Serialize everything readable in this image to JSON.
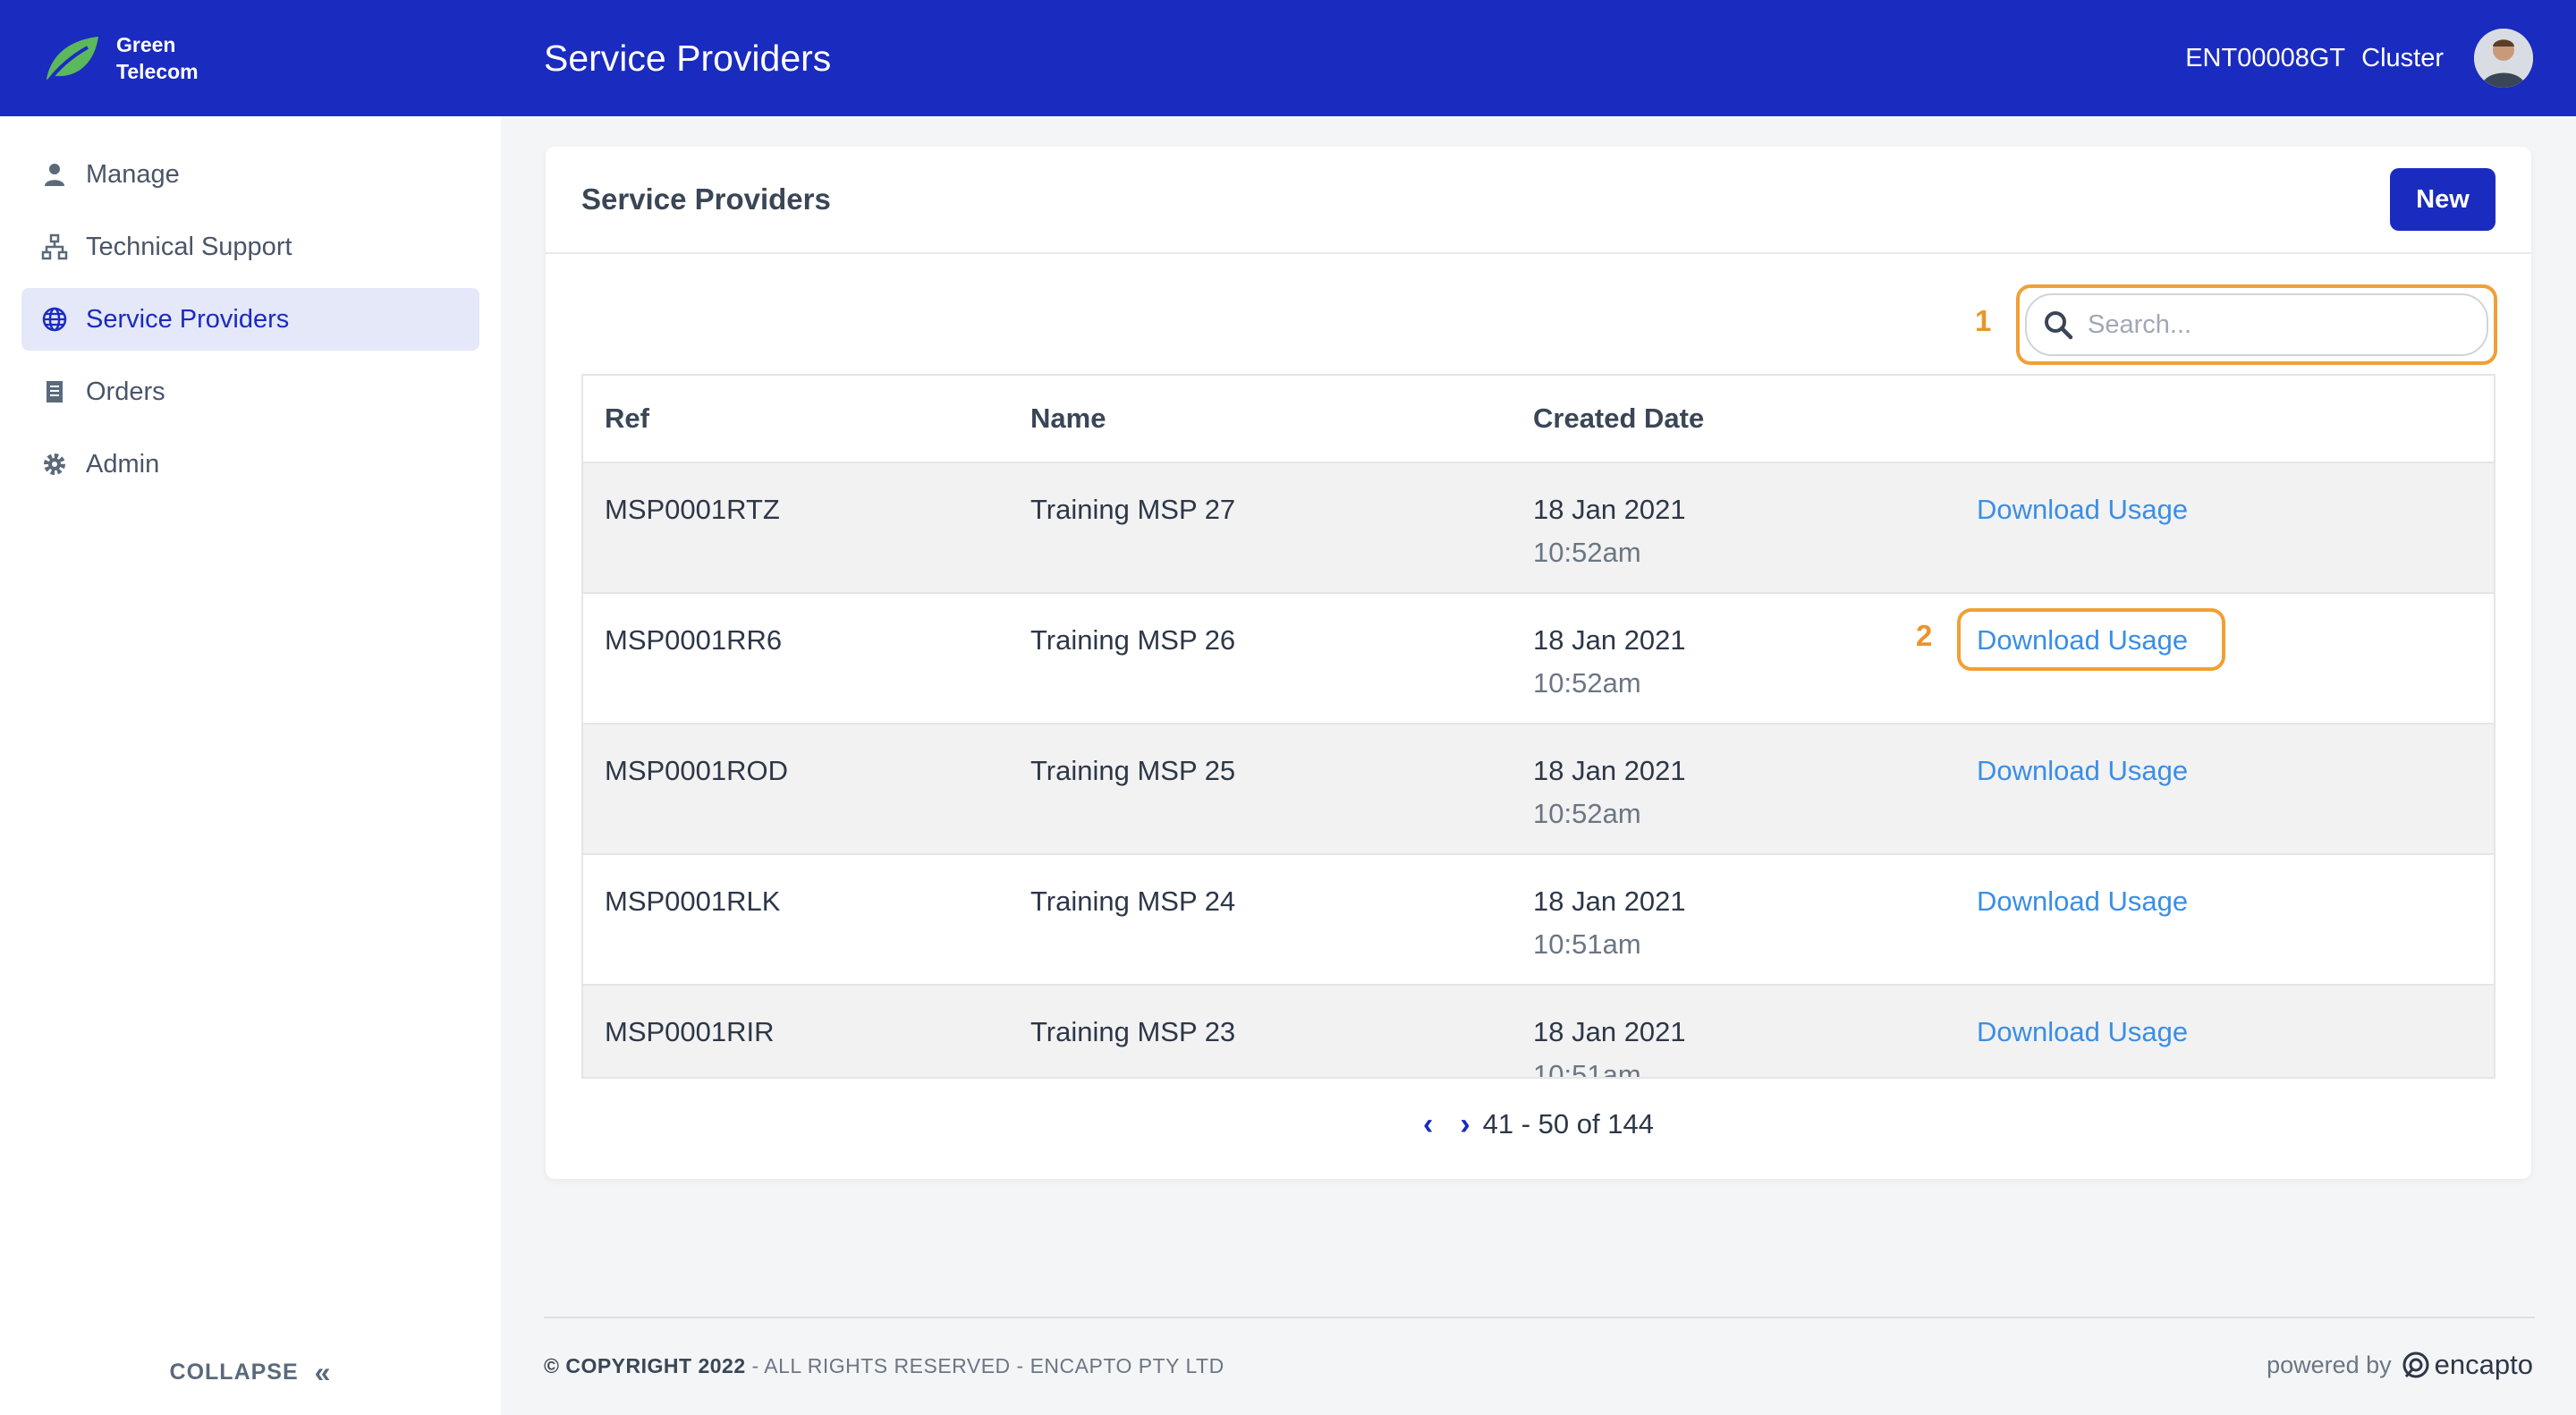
{
  "brand": {
    "line1": "Green",
    "line2": "Telecom"
  },
  "sidebar": {
    "items": [
      {
        "label": "Manage",
        "icon": "user-icon"
      },
      {
        "label": "Technical Support",
        "icon": "sitemap-icon"
      },
      {
        "label": "Service Providers",
        "icon": "globe-icon",
        "active": true
      },
      {
        "label": "Orders",
        "icon": "receipt-icon"
      },
      {
        "label": "Admin",
        "icon": "gear-icon"
      }
    ],
    "collapse_label": "COLLAPSE",
    "collapse_icon": "«"
  },
  "header": {
    "title": "Service Providers",
    "account_id": "ENT00008GT",
    "account_name": "Cluster"
  },
  "card": {
    "title": "Service Providers",
    "new_label": "New"
  },
  "annotations": {
    "search": "1",
    "download": "2"
  },
  "search": {
    "placeholder": "Search..."
  },
  "table": {
    "columns": [
      "Ref",
      "Name",
      "Created Date"
    ],
    "rows": [
      {
        "ref": "MSP0001RTZ",
        "name": "Training MSP 27",
        "date": "18 Jan 2021",
        "time": "10:52am",
        "action": "Download Usage"
      },
      {
        "ref": "MSP0001RR6",
        "name": "Training MSP 26",
        "date": "18 Jan 2021",
        "time": "10:52am",
        "action": "Download Usage"
      },
      {
        "ref": "MSP0001ROD",
        "name": "Training MSP 25",
        "date": "18 Jan 2021",
        "time": "10:52am",
        "action": "Download Usage"
      },
      {
        "ref": "MSP0001RLK",
        "name": "Training MSP 24",
        "date": "18 Jan 2021",
        "time": "10:51am",
        "action": "Download Usage"
      },
      {
        "ref": "MSP0001RIR",
        "name": "Training MSP 23",
        "date": "18 Jan 2021",
        "time": "10:51am",
        "action": "Download Usage"
      }
    ]
  },
  "pagination": {
    "prev_icon": "‹",
    "next_icon": "›",
    "range": "41 - 50 of 144"
  },
  "footer": {
    "copyright": "© COPYRIGHT 2022",
    "rights": " - ALL RIGHTS RESERVED - ENCAPTO PTY LTD",
    "powered_by": "powered by",
    "vendor": "encapto"
  },
  "colors": {
    "primary": "#1a2bc0",
    "link": "#3a8ee6",
    "highlight": "#f0a036",
    "brand_leaf": "#5cb85c"
  }
}
